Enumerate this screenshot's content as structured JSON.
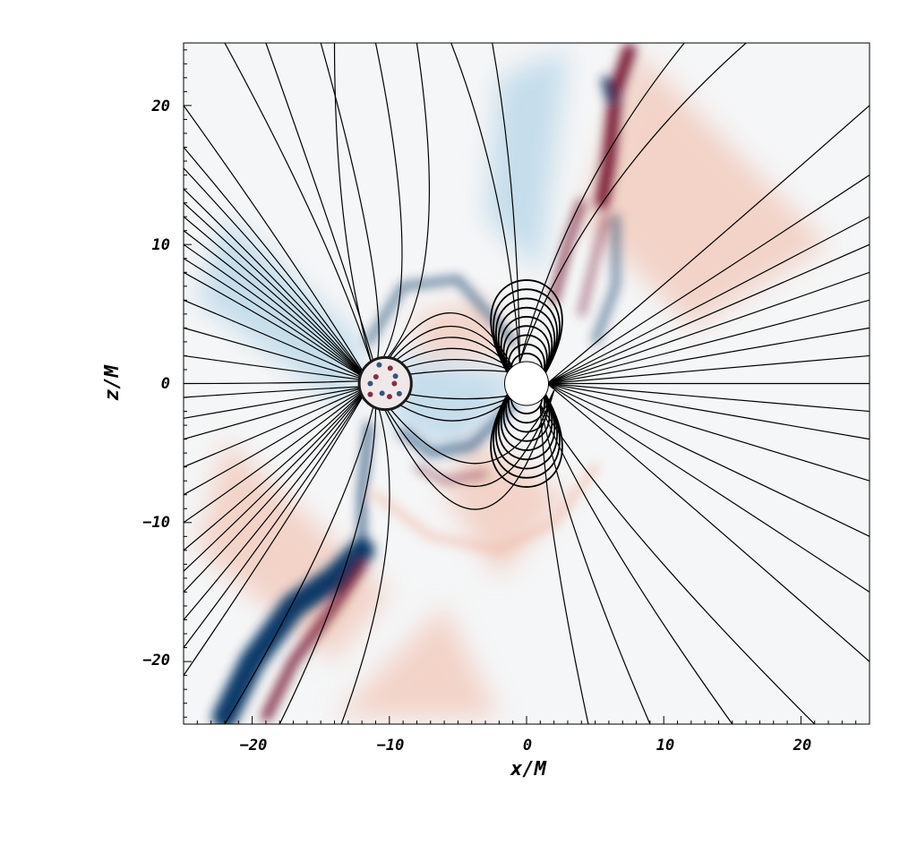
{
  "chart_data": {
    "type": "heatmap",
    "title": "",
    "xlabel": "x/M",
    "ylabel": "z/M",
    "xlim": [
      -25,
      25
    ],
    "ylim": [
      -24.5,
      24.5
    ],
    "x_ticks": [
      -20,
      -10,
      0,
      10,
      20
    ],
    "x_tick_labels": [
      "−20",
      "−10",
      "0",
      "10",
      "20"
    ],
    "y_ticks": [
      20,
      10,
      0,
      -10,
      -20
    ],
    "y_tick_labels": [
      "20",
      "10",
      "0",
      "−10",
      "−20"
    ],
    "grid": false,
    "legend": "none",
    "colormap": {
      "negative": "#053061",
      "mid": "#f7f7f7",
      "positive": "#67001f"
    },
    "compact_objects": [
      {
        "name": "",
        "x": -10.3,
        "z": 0,
        "radius": 1.9,
        "fill": "#f0e8e8",
        "stroke": "#1a1a1a"
      },
      {
        "name": "",
        "x": 0,
        "z": 0,
        "radius": 1.6,
        "fill": "#ffffff",
        "stroke": "#000000"
      }
    ],
    "field_line_color": "#000000"
  }
}
